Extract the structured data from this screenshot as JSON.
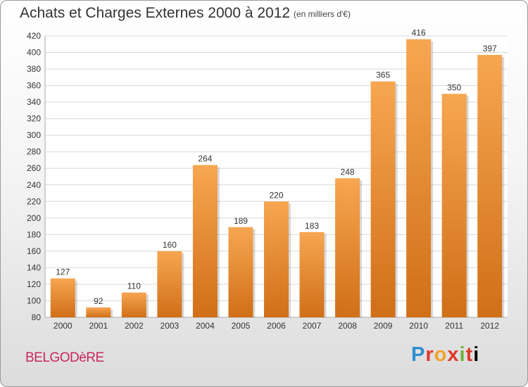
{
  "header": {
    "title": "Achats et Charges Externes 2000 à 2012",
    "unit": "(en milliers d'€)"
  },
  "footer": {
    "place": "BELGODèRE",
    "logo": "Proxiti"
  },
  "colors": {
    "bar_light": "#f7a651",
    "bar_dark": "#d06f17",
    "grid": "#d8d8d8",
    "title": "#333333",
    "place": "#c8275d"
  },
  "chart_data": {
    "type": "bar",
    "categories": [
      "2000",
      "2001",
      "2002",
      "2003",
      "2004",
      "2005",
      "2006",
      "2007",
      "2008",
      "2009",
      "2010",
      "2011",
      "2012"
    ],
    "values": [
      127,
      92,
      110,
      160,
      264,
      189,
      220,
      183,
      248,
      365,
      416,
      350,
      397
    ],
    "data_labels": [
      "127",
      "92",
      "110",
      "160",
      "264",
      "189",
      "220",
      "183",
      "248",
      "365",
      "416",
      "350",
      "397"
    ],
    "ylim": [
      80,
      420
    ],
    "yticks": [
      80,
      100,
      120,
      140,
      160,
      180,
      200,
      220,
      240,
      260,
      280,
      300,
      320,
      340,
      360,
      380,
      400,
      420
    ],
    "grid": true,
    "xlabel": "",
    "ylabel": ""
  }
}
